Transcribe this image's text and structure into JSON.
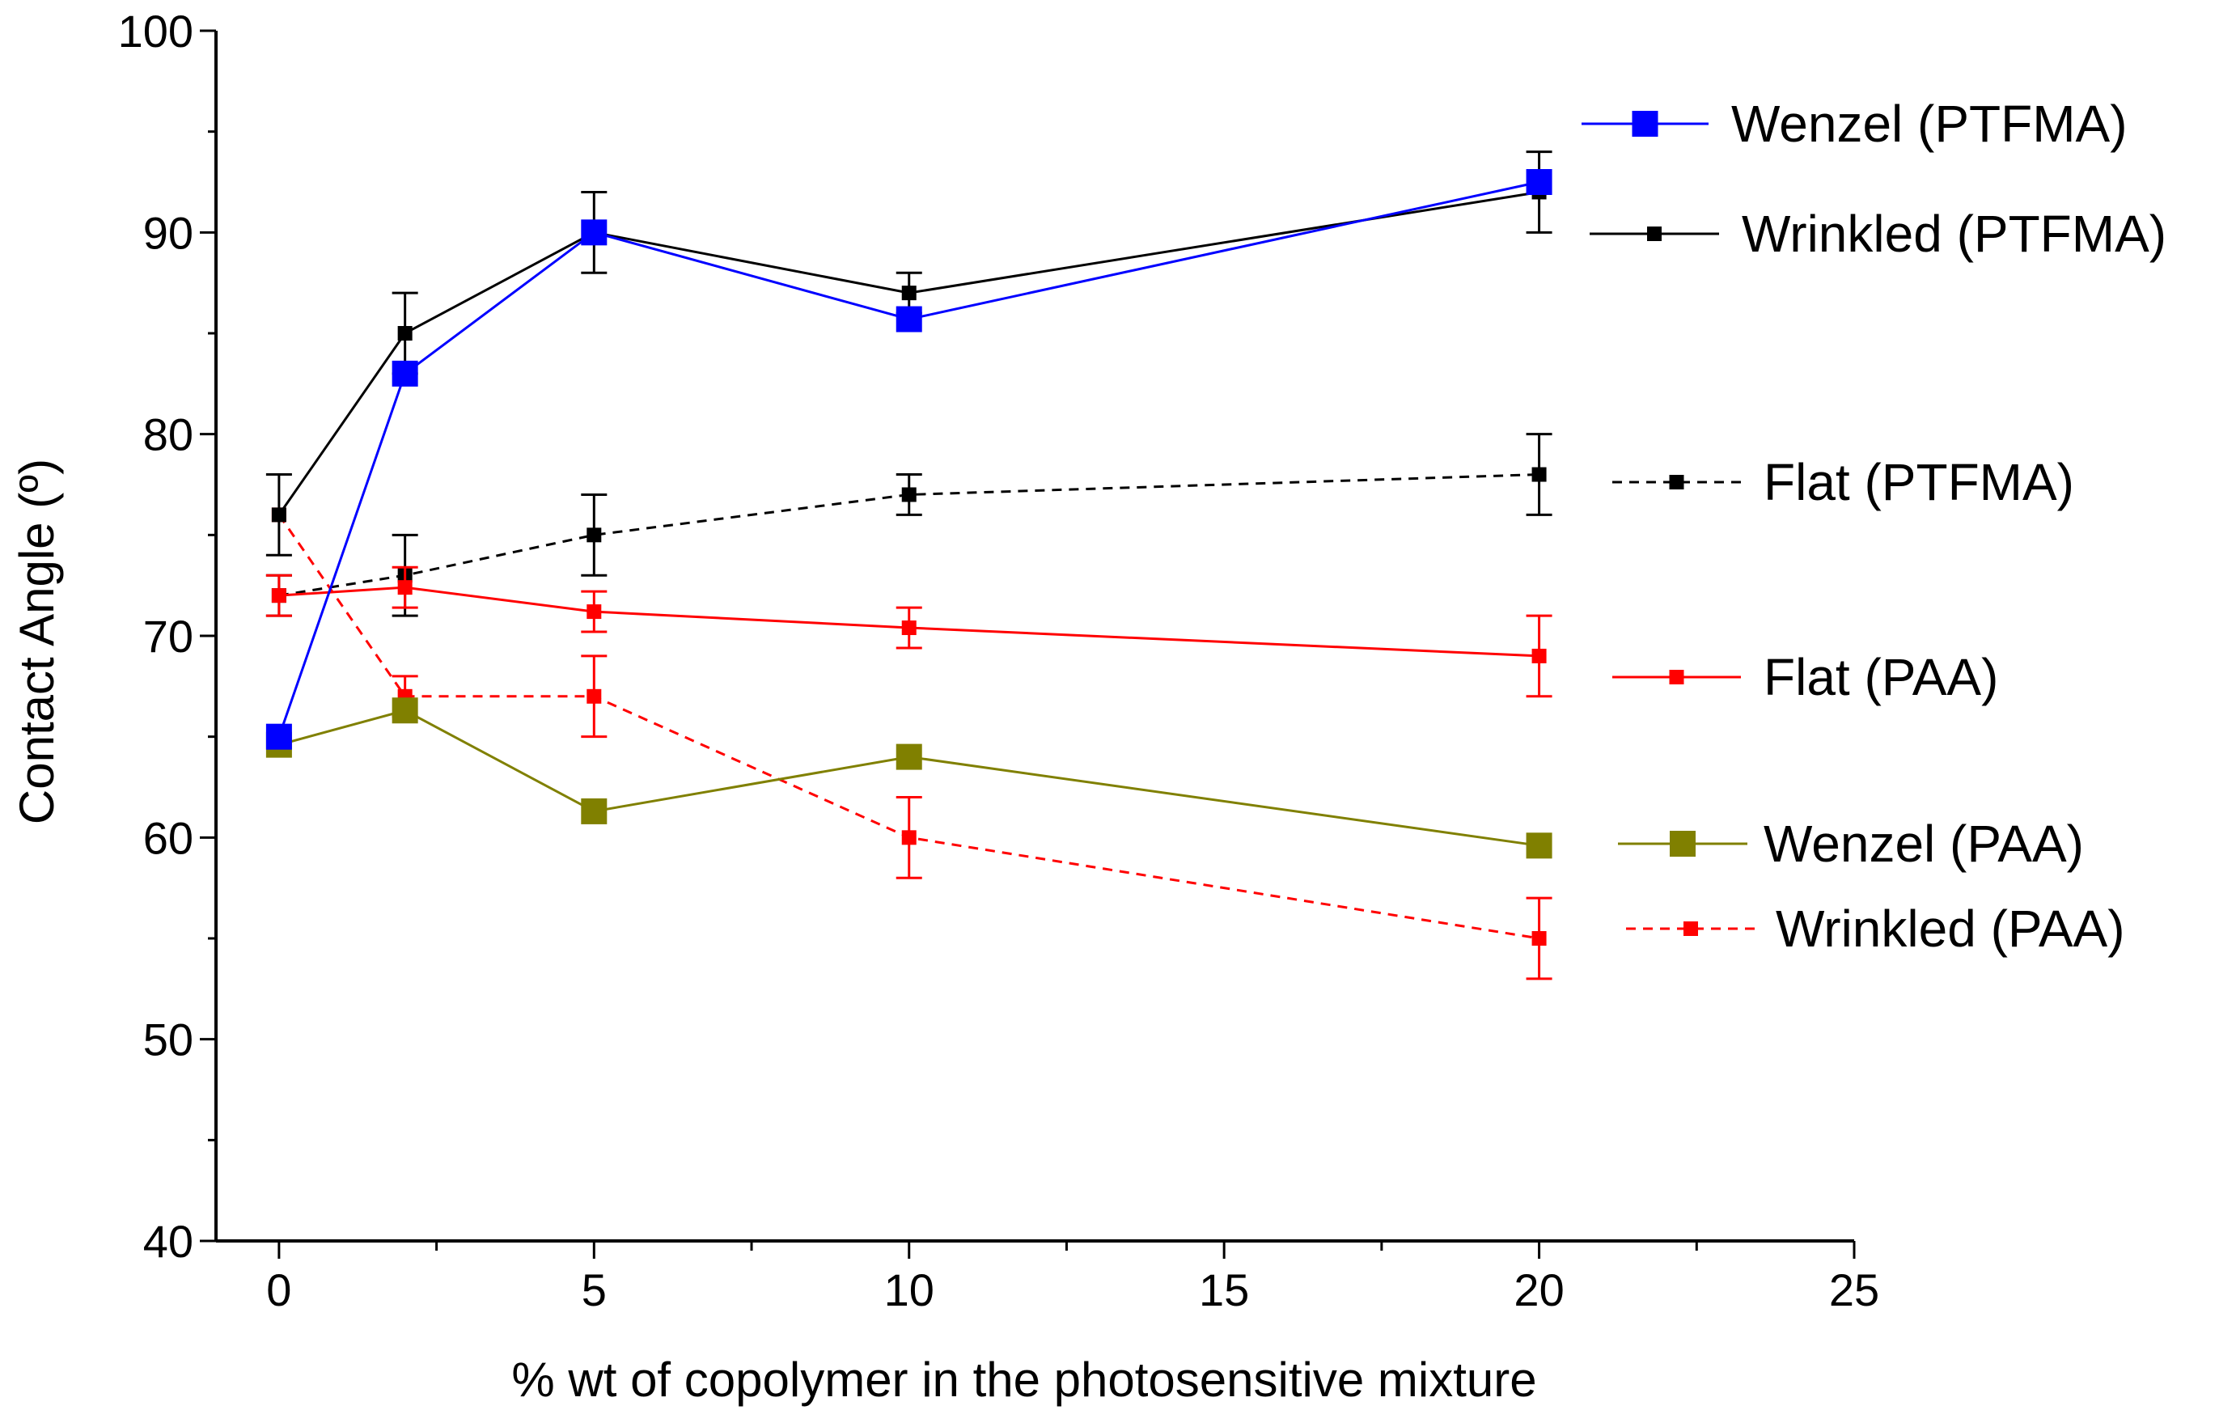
{
  "chart_data": {
    "type": "line",
    "title": "",
    "xlabel": "% wt of copolymer in the photosensitive mixture",
    "ylabel": "Contact Angle (º)",
    "xlim": [
      -1,
      25
    ],
    "ylim": [
      40,
      100
    ],
    "xticks": [
      0,
      5,
      10,
      15,
      20,
      25
    ],
    "yticks": [
      40,
      50,
      60,
      70,
      80,
      90,
      100
    ],
    "xtick_labels": [
      "0",
      "5",
      "10",
      "15",
      "20",
      "25"
    ],
    "ytick_labels": [
      "40",
      "50",
      "60",
      "70",
      "80",
      "90",
      "100"
    ],
    "grid": false,
    "legend_position": "right",
    "series": [
      {
        "name": "Wenzel (PTFMA)",
        "color": "#0000ff",
        "line_style": "solid",
        "marker": "large-square",
        "x": [
          0,
          2,
          5,
          10,
          20
        ],
        "y": [
          65,
          83,
          90,
          85.7,
          92.5
        ],
        "errors": null
      },
      {
        "name": "Wrinkled (PTFMA)",
        "color": "#000000",
        "line_style": "solid",
        "marker": "small-square",
        "x": [
          0,
          2,
          5,
          10,
          20
        ],
        "y": [
          76,
          85,
          90,
          87,
          92
        ],
        "errors": [
          2,
          2,
          2,
          1,
          2
        ]
      },
      {
        "name": "Flat (PTFMA)",
        "color": "#000000",
        "line_style": "dashed",
        "marker": "small-square",
        "x": [
          0,
          2,
          5,
          10,
          20
        ],
        "y": [
          72,
          73,
          75,
          77,
          78
        ],
        "errors": [
          1,
          2,
          2,
          1,
          2
        ]
      },
      {
        "name": "Flat (PAA)",
        "color": "#ff0000",
        "line_style": "solid",
        "marker": "small-square",
        "x": [
          0,
          2,
          5,
          10,
          20
        ],
        "y": [
          72,
          72.4,
          71.2,
          70.4,
          69
        ],
        "errors": [
          1,
          1,
          1,
          1,
          2
        ]
      },
      {
        "name": "Wenzel (PAA)",
        "color": "#808000",
        "line_style": "solid",
        "marker": "large-square",
        "x": [
          0,
          2,
          5,
          10,
          20
        ],
        "y": [
          64.6,
          66.3,
          61.3,
          64,
          59.6
        ],
        "errors": null
      },
      {
        "name": "Wrinkled (PAA)",
        "color": "#ff0000",
        "line_style": "dashed",
        "marker": "small-square",
        "x": [
          0,
          2,
          5,
          10,
          20
        ],
        "y": [
          76,
          67,
          67,
          60,
          55
        ],
        "errors": [
          0,
          1,
          2,
          2,
          2
        ]
      }
    ]
  }
}
